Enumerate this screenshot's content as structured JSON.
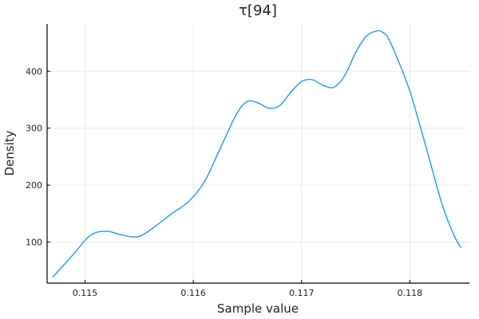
{
  "chart_data": {
    "type": "line",
    "title": "τ[94]",
    "xlabel": "Sample value",
    "ylabel": "Density",
    "xlim": [
      0.11465,
      0.11855
    ],
    "ylim": [
      28,
      483
    ],
    "x_ticks": [
      0.115,
      0.116,
      0.117,
      0.118
    ],
    "x_tick_labels": [
      "0.115",
      "0.116",
      "0.117",
      "0.118"
    ],
    "y_ticks": [
      100,
      200,
      300,
      400
    ],
    "y_tick_labels": [
      "100",
      "200",
      "300",
      "400"
    ],
    "grid": true,
    "legend": "none",
    "series": [
      {
        "color": "#009AFA",
        "x": [
          0.1147,
          0.1149,
          0.11505,
          0.1152,
          0.11535,
          0.1155,
          0.11565,
          0.1158,
          0.11595,
          0.1161,
          0.11625,
          0.1164,
          0.1165,
          0.1166,
          0.1167,
          0.1168,
          0.1169,
          0.117,
          0.1171,
          0.1172,
          0.1173,
          0.1174,
          0.1175,
          0.1176,
          0.1177,
          0.11775,
          0.1178,
          0.1179,
          0.118,
          0.1181,
          0.1182,
          0.1183,
          0.1184,
          0.11847
        ],
        "y": [
          38,
          80,
          112,
          119,
          112,
          110,
          128,
          150,
          170,
          205,
          265,
          325,
          347,
          344,
          335,
          340,
          363,
          382,
          385,
          375,
          372,
          393,
          433,
          462,
          471,
          468,
          458,
          415,
          365,
          300,
          232,
          165,
          115,
          90
        ]
      }
    ]
  }
}
